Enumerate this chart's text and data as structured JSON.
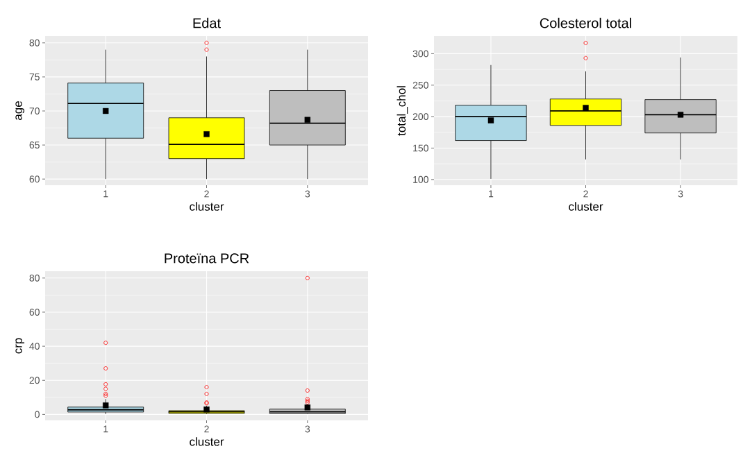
{
  "chart_data": [
    {
      "type": "box",
      "title": "Edat",
      "xlabel": "cluster",
      "ylabel": "age",
      "categories": [
        "1",
        "2",
        "3"
      ],
      "colors": [
        "#add8e6",
        "#ffff00",
        "#bebebe"
      ],
      "ylim": [
        59.1,
        81
      ],
      "yticks": [
        60,
        65,
        70,
        75,
        80
      ],
      "grid": true,
      "boxes": [
        {
          "low": 60,
          "q1": 66,
          "median": 71.1,
          "q3": 74.1,
          "high": 79,
          "mean": 70
        },
        {
          "low": 60,
          "q1": 63,
          "median": 65.1,
          "q3": 69,
          "high": 78,
          "mean": 66.6,
          "outliers": [
            79,
            80
          ]
        },
        {
          "low": 60,
          "q1": 65,
          "median": 68.2,
          "q3": 73,
          "high": 79,
          "mean": 68.7
        }
      ]
    },
    {
      "type": "box",
      "title": "Colesterol total",
      "xlabel": "cluster",
      "ylabel": "total_chol",
      "categories": [
        "1",
        "2",
        "3"
      ],
      "colors": [
        "#add8e6",
        "#ffff00",
        "#bebebe"
      ],
      "ylim": [
        91,
        328
      ],
      "yticks": [
        100,
        150,
        200,
        250,
        300
      ],
      "grid": true,
      "boxes": [
        {
          "low": 101,
          "q1": 162,
          "median": 200,
          "q3": 218,
          "high": 282,
          "mean": 194
        },
        {
          "low": 132,
          "q1": 186,
          "median": 209,
          "q3": 228,
          "high": 272,
          "mean": 214,
          "outliers": [
            293,
            317
          ]
        },
        {
          "low": 132,
          "q1": 174,
          "median": 203,
          "q3": 227,
          "high": 294,
          "mean": 203
        }
      ]
    },
    {
      "type": "box",
      "title": "Proteïna PCR",
      "xlabel": "cluster",
      "ylabel": "crp",
      "categories": [
        "1",
        "2",
        "3"
      ],
      "colors": [
        "#add8e6",
        "#ffff00",
        "#bebebe"
      ],
      "ylim": [
        -3.5,
        84
      ],
      "yticks": [
        0,
        20,
        40,
        60,
        80
      ],
      "grid": true,
      "boxes": [
        {
          "low": 0.2,
          "q1": 1.4,
          "median": 2.7,
          "q3": 4.3,
          "high": 9,
          "mean": 5.3,
          "outliers": [
            11,
            12,
            15,
            17.7,
            27,
            42
          ]
        },
        {
          "low": 0.2,
          "q1": 0.6,
          "median": 1.5,
          "q3": 2.2,
          "high": 5,
          "mean": 2.9,
          "outliers": [
            6.5,
            7,
            12,
            16
          ]
        },
        {
          "low": 0.2,
          "q1": 0.5,
          "median": 1.5,
          "q3": 3.1,
          "high": 6,
          "mean": 4.1,
          "outliers": [
            7,
            8,
            9,
            14,
            80
          ]
        }
      ]
    }
  ]
}
